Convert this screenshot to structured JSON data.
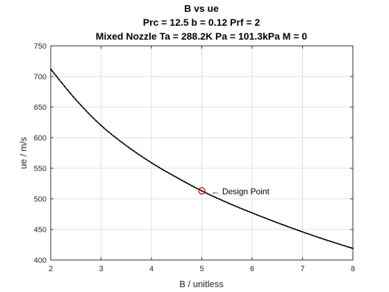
{
  "chart_data": {
    "type": "line",
    "title_lines": [
      "B vs ue",
      "Prc = 12.5 b = 0.12 Prf = 2",
      "Mixed Nozzle Ta = 288.2K Pa = 101.3kPa M = 0"
    ],
    "xlabel": "B / unitless",
    "ylabel": "ue / m/s",
    "xlim": [
      2,
      8
    ],
    "ylim": [
      400,
      750
    ],
    "xticks": [
      2,
      3,
      4,
      5,
      6,
      7,
      8
    ],
    "yticks": [
      400,
      450,
      500,
      550,
      600,
      650,
      700,
      750
    ],
    "grid": true,
    "series": [
      {
        "color": "#000000",
        "marker": "dot",
        "x": [
          2.0,
          2.5,
          3.0,
          3.5,
          4.0,
          4.5,
          5.0,
          5.5,
          6.0,
          6.5,
          7.0,
          7.5,
          8.0
        ],
        "y": [
          712,
          662,
          620,
          587,
          559,
          535,
          513,
          494,
          477,
          461,
          446,
          432,
          419
        ]
      }
    ],
    "annotations": [
      {
        "text": "← Design Point",
        "x": 5.0,
        "y": 513,
        "marker": "circle",
        "color": "#d00000"
      }
    ]
  }
}
